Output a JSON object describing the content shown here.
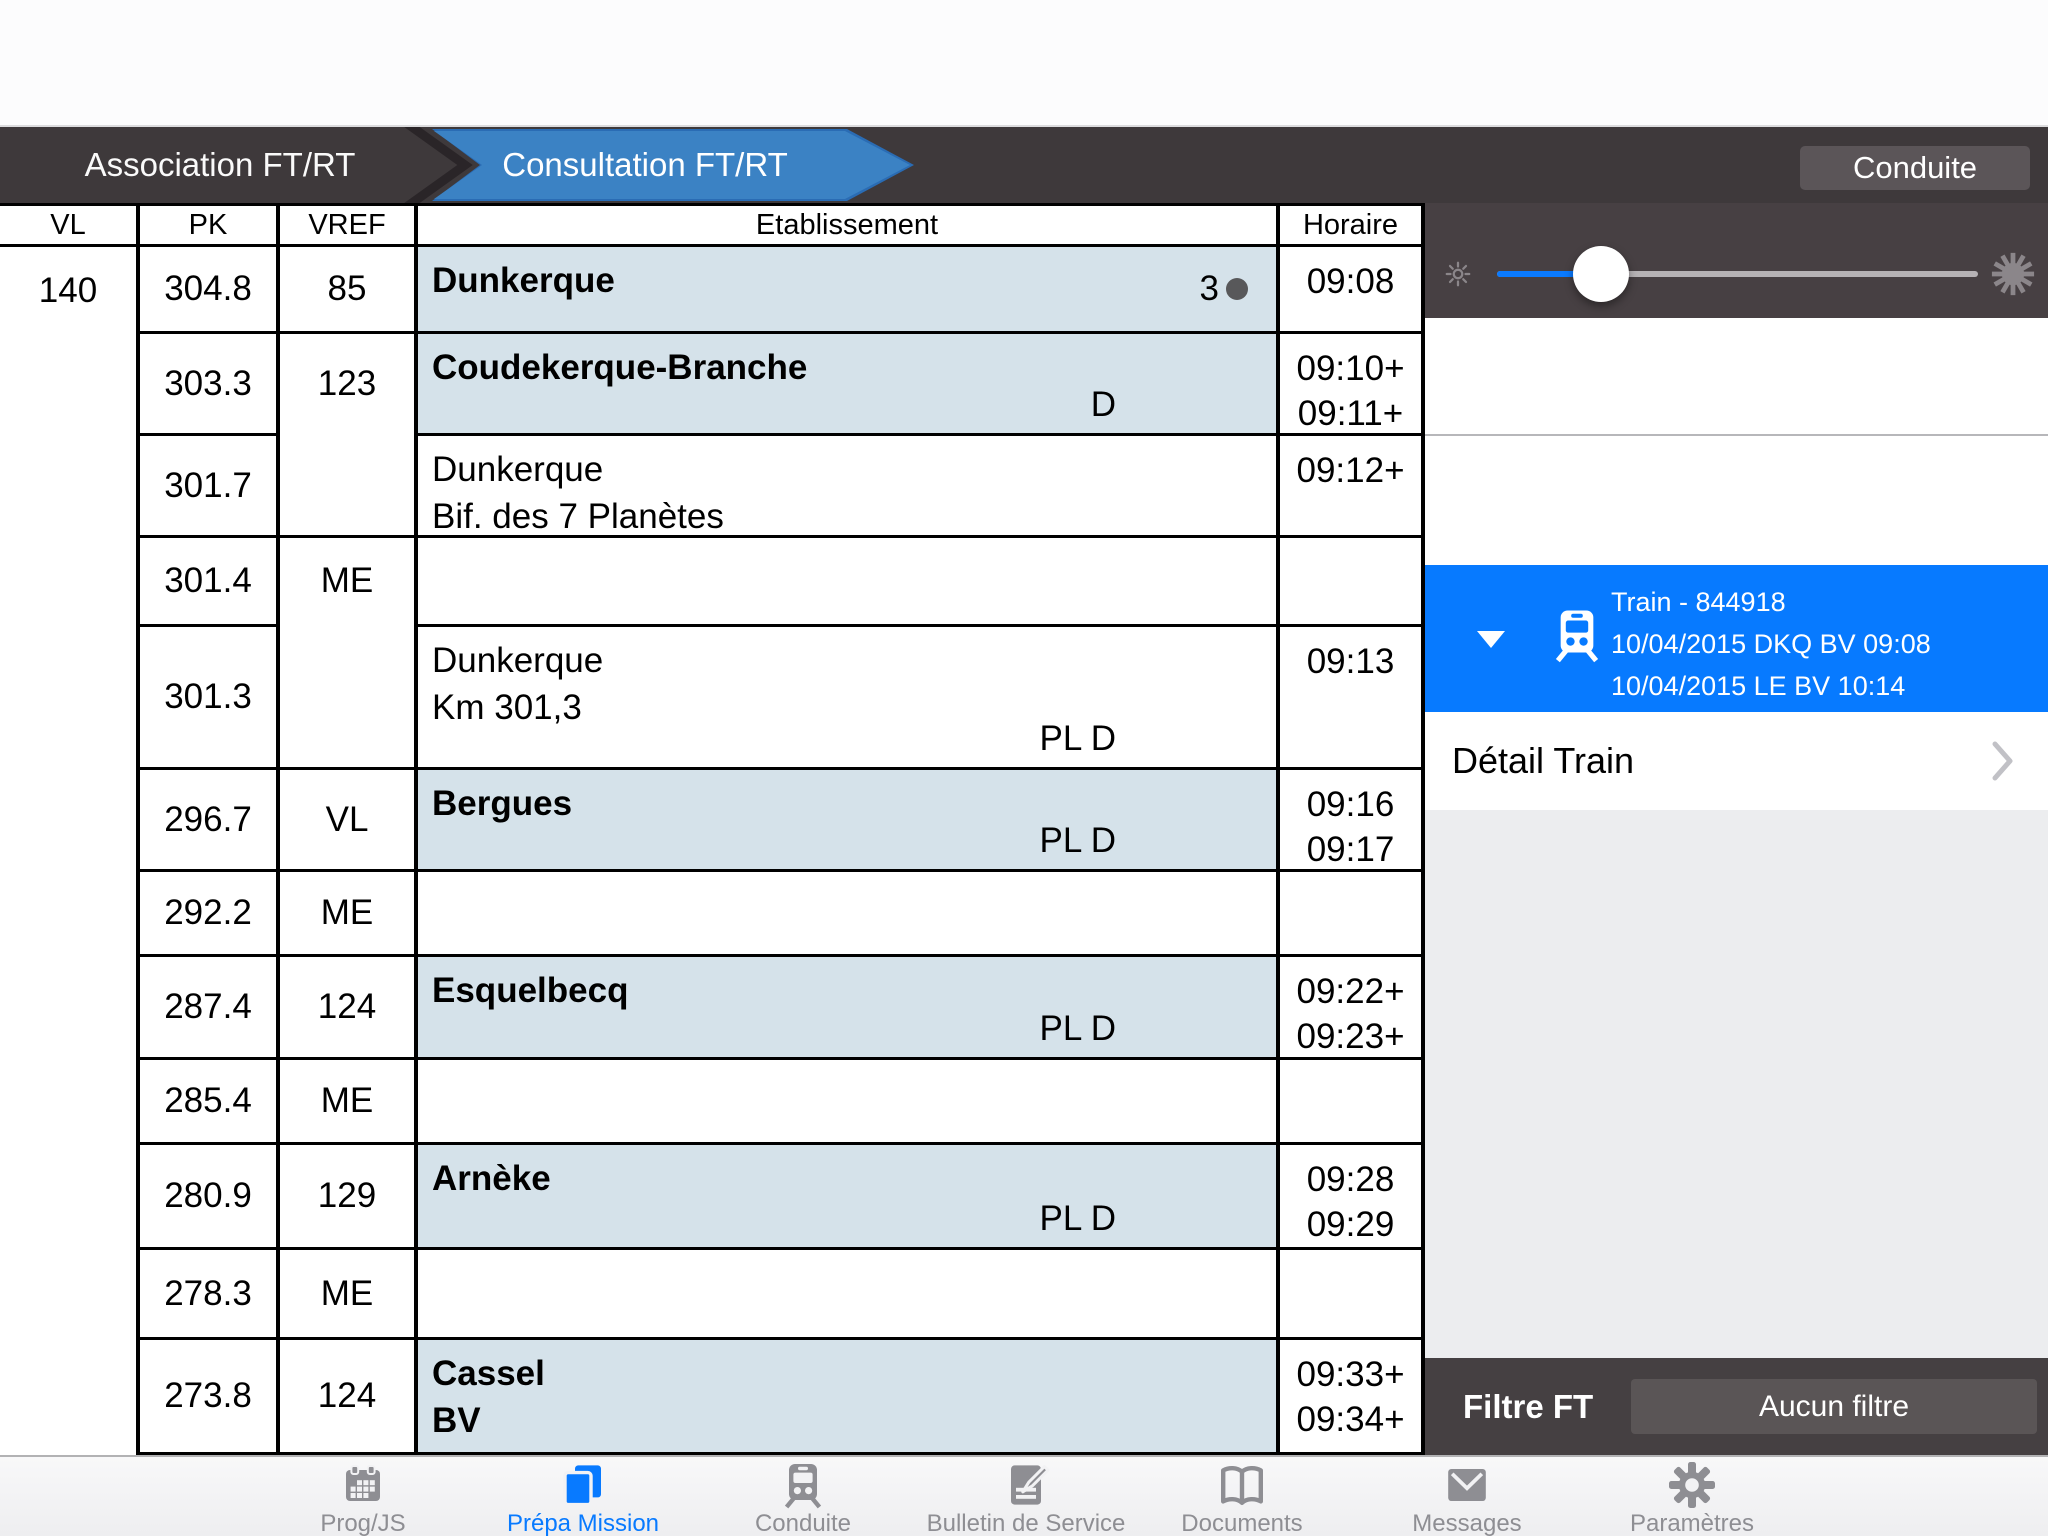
{
  "nav": {
    "back_tab": "Association FT/RT",
    "active_tab": "Consultation FT/RT",
    "right_button": "Conduite"
  },
  "table": {
    "headers": [
      "VL",
      "PK",
      "VREF",
      "Etablissement",
      "Horaire"
    ],
    "vl_value": "140",
    "rows": [
      {
        "pk": "304.8",
        "vref": {
          "value": "85",
          "span": 1
        },
        "station": [
          "Dunkerque"
        ],
        "bold": true,
        "tinted": true,
        "badge": "3",
        "flags": "",
        "times": [
          "09:08"
        ]
      },
      {
        "pk": "303.3",
        "vref": {
          "value": "123",
          "span": 2
        },
        "station": [
          "Coudekerque-Branche"
        ],
        "bold": true,
        "tinted": true,
        "badge": "",
        "flags": "D",
        "times": [
          "09:10+",
          "09:11+"
        ]
      },
      {
        "pk": "301.7",
        "vref": null,
        "station": [
          "Dunkerque",
          "Bif. des 7 Planètes"
        ],
        "bold": false,
        "tinted": false,
        "badge": "",
        "flags": "",
        "times": [
          "09:12+"
        ]
      },
      {
        "pk": "301.4",
        "vref": {
          "value": "ME",
          "span": 2
        },
        "station": [],
        "bold": false,
        "tinted": false,
        "badge": "",
        "flags": "",
        "times": []
      },
      {
        "pk": "301.3",
        "vref": null,
        "station": [
          "Dunkerque",
          "Km 301,3"
        ],
        "bold": false,
        "tinted": false,
        "badge": "",
        "flags": "PL D",
        "times": [
          "09:13"
        ]
      },
      {
        "pk": "296.7",
        "vref": {
          "value": "VL",
          "span": 1
        },
        "station": [
          "Bergues"
        ],
        "bold": true,
        "tinted": true,
        "badge": "",
        "flags": "PL D",
        "times": [
          "09:16",
          "09:17"
        ]
      },
      {
        "pk": "292.2",
        "vref": {
          "value": "ME",
          "span": 1
        },
        "station": [],
        "bold": false,
        "tinted": false,
        "badge": "",
        "flags": "",
        "times": []
      },
      {
        "pk": "287.4",
        "vref": {
          "value": "124",
          "span": 1
        },
        "station": [
          "Esquelbecq"
        ],
        "bold": true,
        "tinted": true,
        "badge": "",
        "flags": "PL D",
        "times": [
          "09:22+",
          "09:23+"
        ]
      },
      {
        "pk": "285.4",
        "vref": {
          "value": "ME",
          "span": 1
        },
        "station": [],
        "bold": false,
        "tinted": false,
        "badge": "",
        "flags": "",
        "times": []
      },
      {
        "pk": "280.9",
        "vref": {
          "value": "129",
          "span": 1
        },
        "station": [
          "Arnèke"
        ],
        "bold": true,
        "tinted": true,
        "badge": "",
        "flags": "PL D",
        "times": [
          "09:28",
          "09:29"
        ]
      },
      {
        "pk": "278.3",
        "vref": {
          "value": "ME",
          "span": 1
        },
        "station": [],
        "bold": false,
        "tinted": false,
        "badge": "",
        "flags": "",
        "times": []
      },
      {
        "pk": "273.8",
        "vref": {
          "value": "124",
          "span": 1
        },
        "station": [
          "Cassel",
          "BV"
        ],
        "bold": true,
        "tinted": true,
        "badge": "",
        "flags": "",
        "times": [
          "09:33+",
          "09:34+"
        ]
      }
    ]
  },
  "panel": {
    "brightness": {
      "value_pct": 22,
      "left_icon": "brightness-low-icon",
      "right_icon": "brightness-high-icon"
    },
    "train": {
      "line1": "Train - 844918",
      "line2": "10/04/2015 DKQ BV 09:08",
      "line3": "10/04/2015 LE BV 10:14",
      "icon": "train-icon",
      "expander": "triangle-down-icon"
    },
    "detail_label": "Détail Train",
    "filter_label": "Filtre FT",
    "filter_value": "Aucun filtre"
  },
  "tabbar": {
    "items": [
      {
        "label": "Prog/JS",
        "icon": "calendar-icon",
        "active": false
      },
      {
        "label": "Prépa Mission",
        "icon": "pages-icon",
        "active": true
      },
      {
        "label": "Conduite",
        "icon": "train-icon",
        "active": false
      },
      {
        "label": "Bulletin de Service",
        "icon": "bulletin-icon",
        "active": false
      },
      {
        "label": "Documents",
        "icon": "book-icon",
        "active": false
      },
      {
        "label": "Messages",
        "icon": "envelope-icon",
        "active": false
      },
      {
        "label": "Paramètres",
        "icon": "gear-icon",
        "active": false
      }
    ]
  },
  "colors": {
    "nav_dark": "#3e393b",
    "tab_blue": "#3b82c4",
    "tab_blue_edge": "#2a6cb4",
    "button_gray": "#5b5558",
    "station_tint": "#d5e2ea",
    "selected_blue": "#077aff",
    "slider_blue": "#0a7aff",
    "filter_bar": "#454042",
    "tab_active": "#087aff",
    "tab_inactive": "#8e8e93",
    "badge_dot": "#58585a"
  }
}
